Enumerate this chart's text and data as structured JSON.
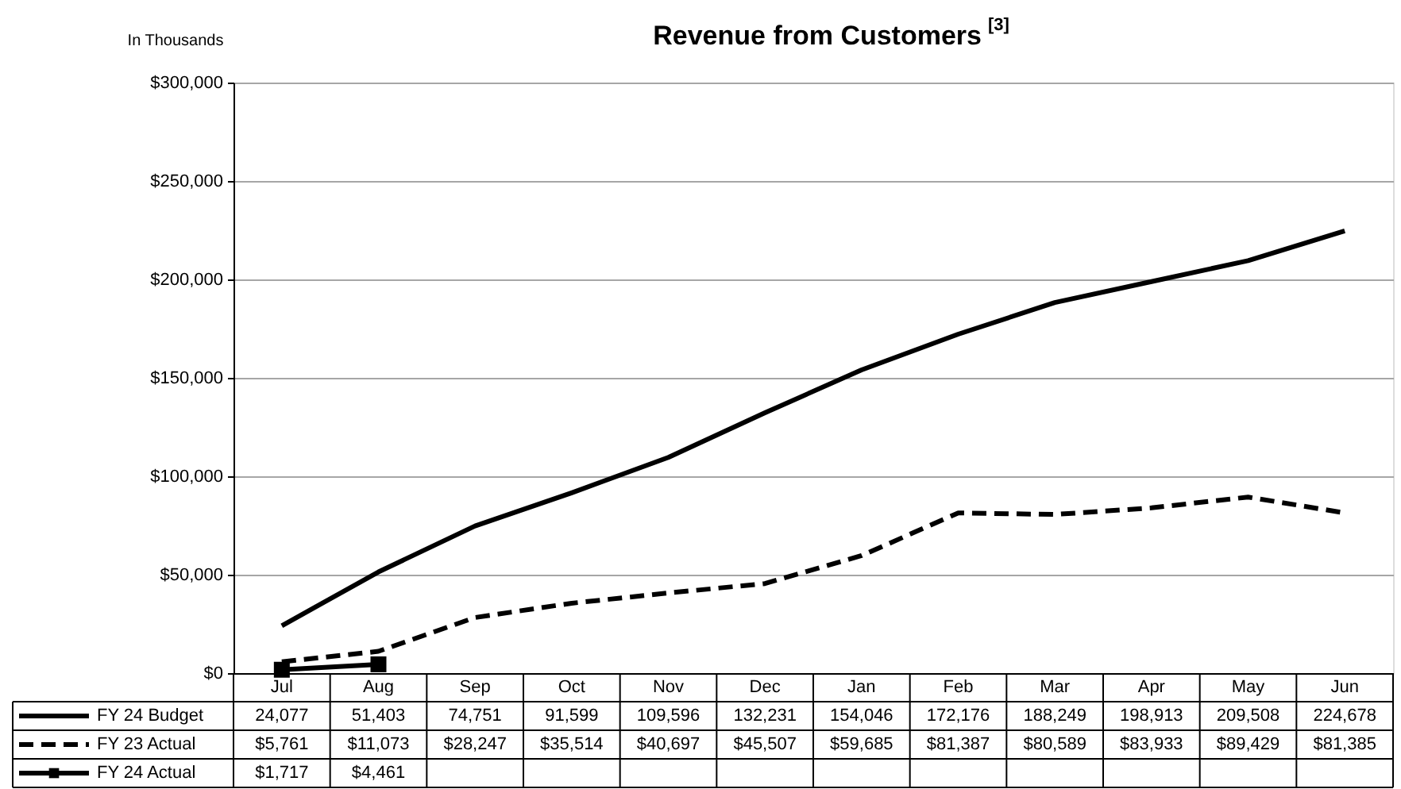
{
  "chart_data": {
    "type": "line",
    "title": "Revenue from Customers $^{[3]}$",
    "ylabel": "In Thousands",
    "categories": [
      "Jul",
      "Aug",
      "Sep",
      "Oct",
      "Nov",
      "Dec",
      "Jan",
      "Feb",
      "Mar",
      "Apr",
      "May",
      "Jun"
    ],
    "ylim": [
      0,
      300000
    ],
    "yticks": [
      {
        "value": 0,
        "label": "$0"
      },
      {
        "value": 50000,
        "label": "$50,000"
      },
      {
        "value": 100000,
        "label": "$100,000"
      },
      {
        "value": 150000,
        "label": "$150,000"
      },
      {
        "value": 200000,
        "label": "$200,000"
      },
      {
        "value": 250000,
        "label": "$250,000"
      },
      {
        "value": 300000,
        "label": "$300,000"
      }
    ],
    "grid": "y",
    "legend": "bottom left",
    "series": [
      {
        "name": "FY 24 Budget",
        "color": "#000000",
        "line_style": "solid",
        "values": [
          24077,
          51403,
          74751,
          91599,
          109596,
          132231,
          154046,
          172176,
          188249,
          198913,
          209508,
          224678
        ],
        "value_labels": [
          "24,077",
          "51,403",
          "74,751",
          "91,599",
          "109,596",
          "132,231",
          "154,046",
          "172,176",
          "188,249",
          "198,913",
          "209,508",
          "224,678"
        ]
      },
      {
        "name": "FY 23 Actual",
        "color": "#000000",
        "line_style": "dashed",
        "values": [
          5761,
          11073,
          28247,
          35514,
          40697,
          45507,
          59685,
          81387,
          80589,
          83933,
          89429,
          81385
        ],
        "value_labels": [
          "$5,761",
          "$11,073",
          "$28,247",
          "$35,514",
          "$40,697",
          "$45,507",
          "$59,685",
          "$81,387",
          "$80,589",
          "$83,933",
          "$89,429",
          "$81,385"
        ]
      },
      {
        "name": "FY 24 Actual",
        "color": "#000000",
        "line_style": "solid",
        "marker": "square",
        "values": [
          1717,
          4461,
          null,
          null,
          null,
          null,
          null,
          null,
          null,
          null,
          null,
          null
        ],
        "value_labels": [
          "$1,717",
          "$4,461",
          null,
          null,
          null,
          null,
          null,
          null,
          null,
          null,
          null,
          null
        ]
      }
    ]
  }
}
